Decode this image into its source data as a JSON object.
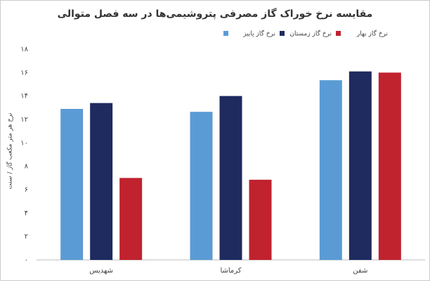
{
  "chart_data": {
    "type": "bar",
    "title": "مقایسه نرخ خوراک گاز مصرفی پتروشیمی‌ها در سه فصل متوالی",
    "y_label": "نرخ هر متر مکعب گاز / سنت",
    "categories": [
      "شهدیس",
      "کرماشا",
      "شفن"
    ],
    "series": [
      {
        "name": "نرخ گاز پاییز",
        "color": "#5b9bd5",
        "values": [
          12.9,
          12.65,
          15.35
        ]
      },
      {
        "name": "نرخ گاز زمستان",
        "color": "#1f2a5e",
        "values": [
          13.4,
          14.0,
          16.1
        ]
      },
      {
        "name": "نرخ گاز بهار",
        "color": "#c0222e",
        "values": [
          7.0,
          6.85,
          16.0
        ]
      }
    ],
    "ylim": [
      0,
      18
    ],
    "yticks": [
      {
        "value": 0,
        "label": "۰"
      },
      {
        "value": 2,
        "label": "۲"
      },
      {
        "value": 4,
        "label": "۴"
      },
      {
        "value": 6,
        "label": "۶"
      },
      {
        "value": 8,
        "label": "۸"
      },
      {
        "value": 10,
        "label": "۱۰"
      },
      {
        "value": 12,
        "label": "۱۲"
      },
      {
        "value": 14,
        "label": "۱۴"
      },
      {
        "value": 16,
        "label": "۱۶"
      },
      {
        "value": 18,
        "label": "۱۸"
      }
    ],
    "grid": false
  }
}
